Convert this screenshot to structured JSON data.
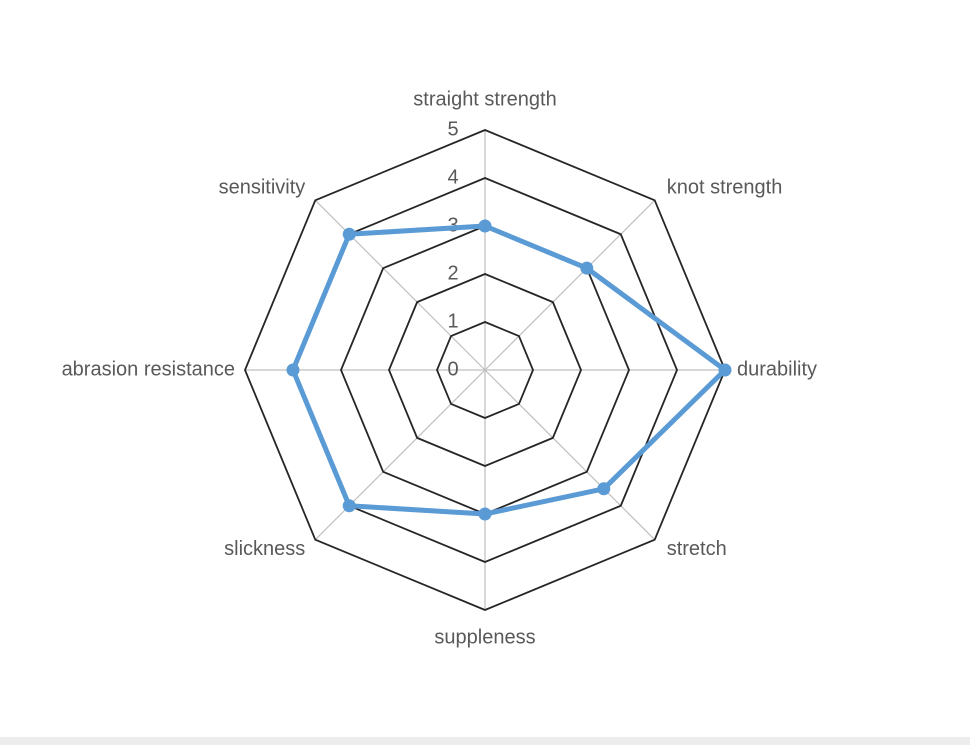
{
  "chart_data": {
    "type": "radar",
    "categories": [
      "straight strength",
      "knot strength",
      "durability",
      "stretch",
      "suppleness",
      "slickness",
      "abrasion resistance",
      "sensitivity"
    ],
    "series": [
      {
        "name": null,
        "color": "#5b9bd5",
        "values": [
          3,
          3,
          5,
          3.5,
          3,
          4,
          4,
          4
        ]
      }
    ],
    "ylim": [
      0,
      5
    ],
    "yticks": [
      0,
      1,
      2,
      3,
      4,
      5
    ],
    "grid": true
  }
}
